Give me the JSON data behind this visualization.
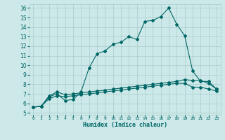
{
  "xlabel": "Humidex (Indice chaleur)",
  "bg_color": "#cce8e8",
  "grid_color": "#aacccc",
  "line_color": "#006666",
  "xlim": [
    -0.5,
    23.5
  ],
  "ylim": [
    4.8,
    16.4
  ],
  "xticks": [
    0,
    1,
    2,
    3,
    4,
    5,
    6,
    7,
    8,
    9,
    10,
    11,
    12,
    13,
    14,
    15,
    16,
    17,
    18,
    19,
    20,
    21,
    22,
    23
  ],
  "yticks": [
    5,
    6,
    7,
    8,
    9,
    10,
    11,
    12,
    13,
    14,
    15,
    16
  ],
  "line1_x": [
    0,
    1,
    2,
    3,
    4,
    5,
    6,
    7,
    8,
    9,
    10,
    11,
    12,
    13,
    14,
    15,
    16,
    17,
    18,
    19,
    20,
    21,
    22,
    23
  ],
  "line1_y": [
    5.6,
    5.7,
    6.7,
    7.0,
    6.3,
    6.4,
    7.2,
    9.7,
    11.2,
    11.5,
    12.2,
    12.4,
    13.0,
    12.7,
    14.6,
    14.7,
    15.1,
    16.0,
    14.3,
    13.1,
    9.4,
    8.3,
    8.3,
    7.5
  ],
  "line2_x": [
    0,
    1,
    2,
    3,
    4,
    5,
    6,
    7,
    8,
    9,
    10,
    11,
    12,
    13,
    14,
    15,
    16,
    17,
    18,
    19,
    20,
    21,
    22,
    23
  ],
  "line2_y": [
    5.6,
    5.7,
    6.8,
    7.2,
    6.9,
    7.0,
    7.1,
    7.2,
    7.3,
    7.4,
    7.5,
    7.6,
    7.7,
    7.8,
    7.9,
    8.0,
    8.1,
    8.2,
    8.3,
    8.5,
    8.4,
    8.4,
    8.1,
    7.5
  ],
  "line3_x": [
    0,
    1,
    2,
    3,
    4,
    5,
    6,
    7,
    8,
    9,
    10,
    11,
    12,
    13,
    14,
    15,
    16,
    17,
    18,
    19,
    20,
    21,
    22,
    23
  ],
  "line3_y": [
    5.6,
    5.7,
    6.5,
    6.8,
    6.7,
    6.8,
    6.9,
    7.0,
    7.1,
    7.2,
    7.3,
    7.4,
    7.5,
    7.6,
    7.7,
    7.8,
    7.9,
    8.0,
    8.1,
    8.1,
    7.7,
    7.7,
    7.5,
    7.3
  ]
}
